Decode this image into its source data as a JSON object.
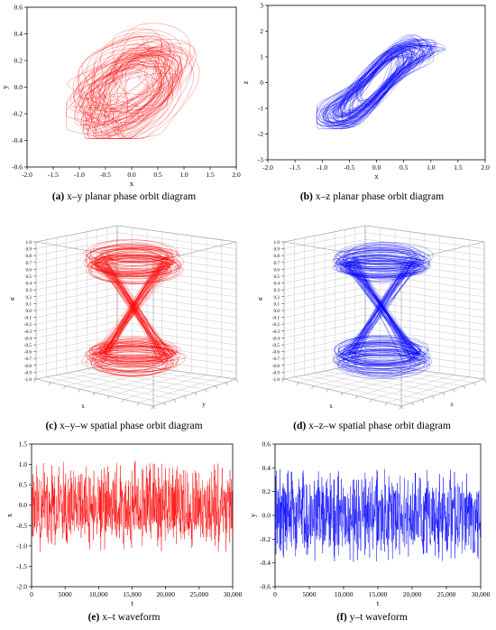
{
  "captions": [
    {
      "letter": "(a)",
      "text": " x–y planar phase orbit diagram"
    },
    {
      "letter": "(b)",
      "text": " x–z planar phase orbit diagram"
    },
    {
      "letter": "(c)",
      "text": " x–y–w spatial phase orbit diagram"
    },
    {
      "letter": "(d)",
      "text": " x–z–w spatial phase orbit diagram"
    },
    {
      "letter": "(e)",
      "text": " x–t waveform"
    },
    {
      "letter": "(f)",
      "text": " y–t waveform"
    }
  ],
  "colors": {
    "red": "#ff0000",
    "blue": "#0000ff",
    "axis": "#000000",
    "grid": "#c8c8c8"
  },
  "chart_data": [
    {
      "id": "a",
      "type": "line",
      "title": "",
      "xlabel": "x",
      "ylabel": "y",
      "xlim": [
        -2.0,
        2.0
      ],
      "ylim": [
        -0.7,
        0.7
      ],
      "xticks": [
        "-2.0",
        "-1.5",
        "-1.0",
        "-0.5",
        "0.0",
        "0.5",
        "1.0",
        "1.5",
        "2.0"
      ],
      "yticks": [
        "-0.6",
        "-0.4",
        "-0.2",
        "0.0",
        "0.2",
        "0.4",
        "0.6"
      ],
      "series": [
        {
          "color": "red",
          "x_range": [
            -1.25,
            1.6
          ],
          "y_range": [
            -0.45,
            0.58
          ]
        }
      ]
    },
    {
      "id": "b",
      "type": "line",
      "title": "",
      "xlabel": "x",
      "ylabel": "z",
      "xlim": [
        -2.0,
        2.0
      ],
      "ylim": [
        -3,
        3
      ],
      "xticks": [
        "-2.0",
        "-1.5",
        "-1.0",
        "-0.5",
        "0.0",
        "0.5",
        "1.0",
        "1.5",
        "2.0"
      ],
      "yticks": [
        "-3",
        "-2",
        "-1",
        "0",
        "1",
        "2",
        "3"
      ],
      "series": [
        {
          "color": "blue",
          "x_range": [
            -1.1,
            1.4
          ],
          "z_range": [
            -1.8,
            2.4
          ]
        }
      ]
    },
    {
      "id": "c",
      "type": "line3d",
      "title": "",
      "xlabel": "x",
      "ylabel": "y",
      "zlabel": "w",
      "zlim": [
        -1.0,
        1.0
      ],
      "zticks": [
        "-1.0",
        "-0.9",
        "-0.8",
        "-0.7",
        "-0.6",
        "-0.5",
        "-0.4",
        "-0.3",
        "-0.2",
        "-0.1",
        "0.0",
        "0.1",
        "0.2",
        "0.3",
        "0.4",
        "0.5",
        "0.6",
        "0.7",
        "0.8",
        "0.9",
        "1.0"
      ],
      "series": [
        {
          "color": "red"
        }
      ]
    },
    {
      "id": "d",
      "type": "line3d",
      "title": "",
      "xlabel": "x",
      "ylabel": "z",
      "zlabel": "w",
      "zlim": [
        -1.0,
        1.0
      ],
      "zticks": [
        "-1.0",
        "-0.9",
        "-0.8",
        "-0.7",
        "-0.6",
        "-0.5",
        "-0.4",
        "-0.3",
        "-0.2",
        "-0.1",
        "0.0",
        "0.1",
        "0.2",
        "0.3",
        "0.4",
        "0.5",
        "0.6",
        "0.7",
        "0.8",
        "0.9",
        "1.0"
      ],
      "series": [
        {
          "color": "blue"
        }
      ]
    },
    {
      "id": "e",
      "type": "line",
      "title": "",
      "xlabel": "t",
      "ylabel": "x",
      "xlim": [
        0,
        30000
      ],
      "ylim": [
        -2.0,
        1.5
      ],
      "xticks": [
        "0",
        "5000",
        "10,000",
        "15,000",
        "20,000",
        "25,000",
        "30,000"
      ],
      "yticks": [
        "-2.0",
        "-1.5",
        "-1.0",
        "-0.5",
        "0.0",
        "0.5",
        "1.0",
        "1.5"
      ],
      "series": [
        {
          "color": "red",
          "amplitude": 1.15
        }
      ]
    },
    {
      "id": "f",
      "type": "line",
      "title": "",
      "xlabel": "t",
      "ylabel": "y",
      "xlim": [
        0,
        30000
      ],
      "ylim": [
        -0.6,
        0.6
      ],
      "xticks": [
        "0",
        "5000",
        "10,000",
        "15,000",
        "20,000",
        "25,000",
        "30,000"
      ],
      "yticks": [
        "-0.6",
        "-0.4",
        "-0.2",
        "0.0",
        "0.2",
        "0.4",
        "0.6"
      ],
      "series": [
        {
          "color": "blue",
          "amplitude": 0.4
        }
      ]
    }
  ]
}
